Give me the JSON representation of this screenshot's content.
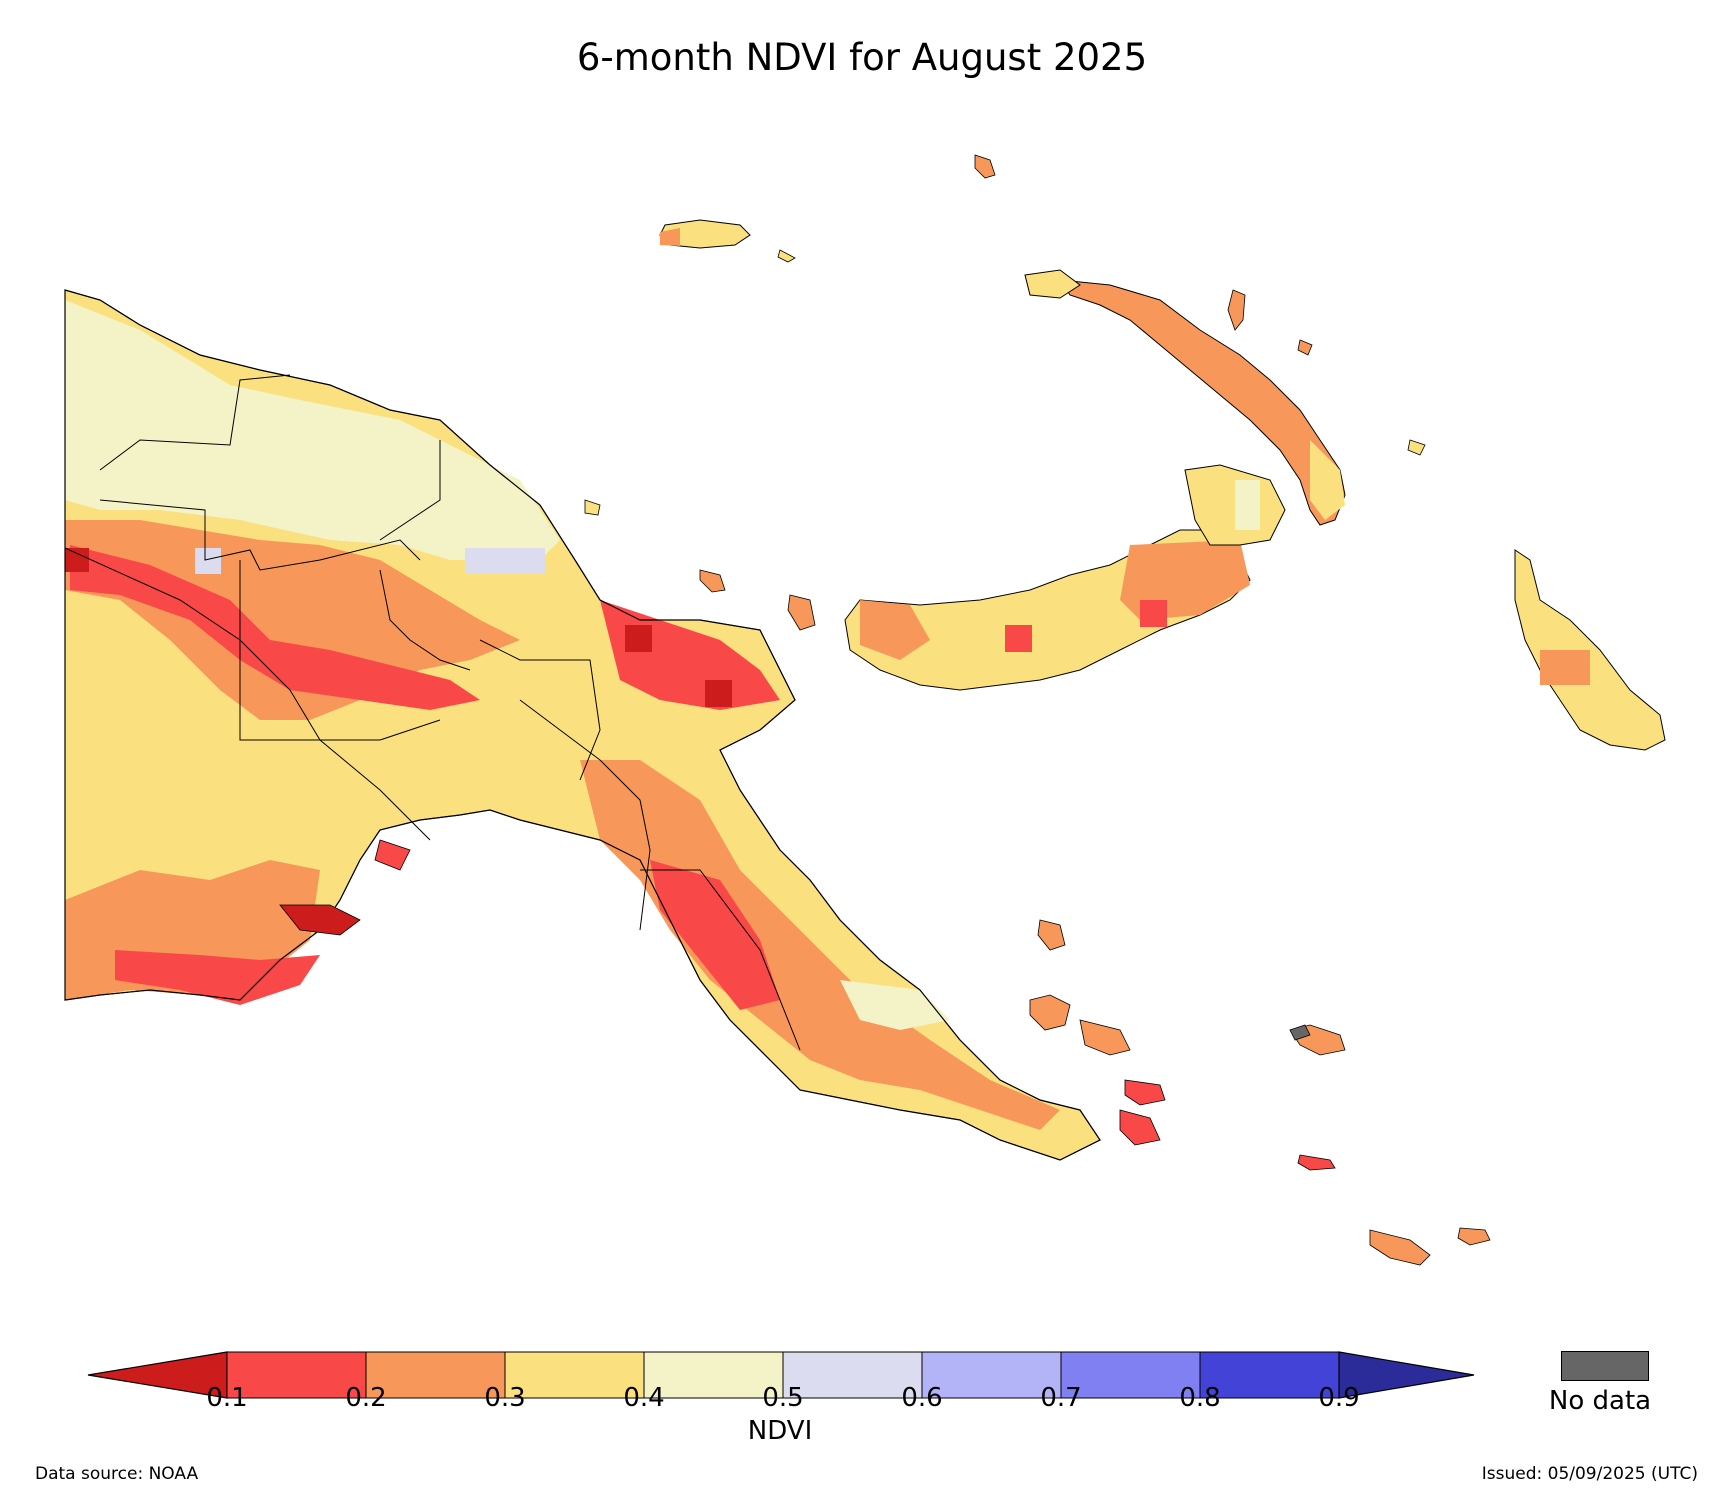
{
  "title": "6-month NDVI for August 2025",
  "colorbar": {
    "label": "NDVI",
    "ticks": [
      "0.1",
      "0.2",
      "0.3",
      "0.4",
      "0.5",
      "0.6",
      "0.7",
      "0.8",
      "0.9"
    ],
    "bins": [
      {
        "range": "<0.1",
        "color": "#cc1c1c"
      },
      {
        "range": "0.1-0.2",
        "color": "#f94848"
      },
      {
        "range": "0.2-0.3",
        "color": "#f7975a"
      },
      {
        "range": "0.3-0.4",
        "color": "#fbe07f"
      },
      {
        "range": "0.4-0.5",
        "color": "#f3f3c7"
      },
      {
        "range": "0.5-0.6",
        "color": "#dcdcf0"
      },
      {
        "range": "0.6-0.7",
        "color": "#b3b3f7"
      },
      {
        "range": "0.7-0.8",
        "color": "#8080f2"
      },
      {
        "range": "0.8-0.9",
        "color": "#4343d8"
      },
      {
        "range": ">0.9",
        "color": "#2b2b99"
      }
    ],
    "nodata_label": "No data",
    "nodata_color": "#666666"
  },
  "footer": {
    "source": "Data source: NOAA",
    "issued": "Issued: 05/09/2025 (UTC)"
  },
  "map": {
    "region": "Papua New Guinea",
    "dominant_class": "0.3-0.4",
    "boundary_color": "#000000"
  }
}
